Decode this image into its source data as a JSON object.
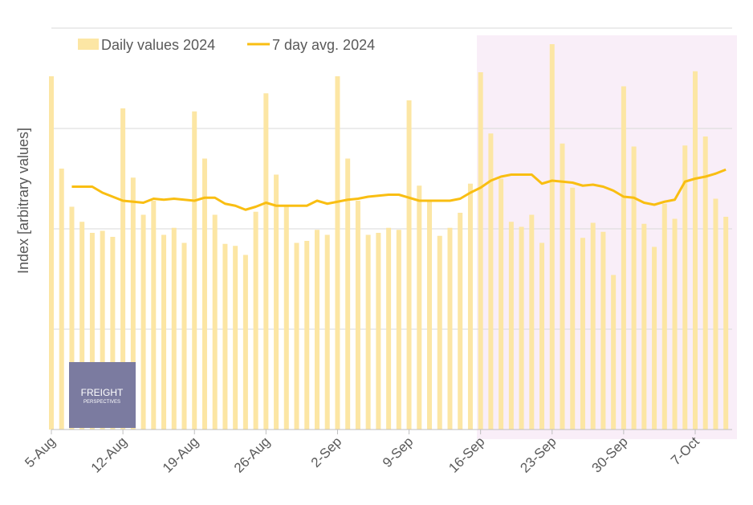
{
  "chart_data": {
    "type": "bar_line",
    "y_label": "Index [arbitrary values]",
    "categories": [
      "5-Aug",
      null,
      null,
      null,
      null,
      null,
      null,
      "12-Aug",
      null,
      null,
      null,
      null,
      null,
      null,
      "19-Aug",
      null,
      null,
      null,
      null,
      null,
      null,
      "26-Aug",
      null,
      null,
      null,
      null,
      null,
      null,
      "2-Sep",
      null,
      null,
      null,
      null,
      null,
      null,
      "9-Sep",
      null,
      null,
      null,
      null,
      null,
      null,
      "16-Sep",
      null,
      null,
      null,
      null,
      null,
      null,
      "23-Sep",
      null,
      null,
      null,
      null,
      null,
      null,
      "30-Sep",
      null,
      null,
      null,
      null,
      null,
      null,
      "7-Oct",
      null,
      null,
      null
    ],
    "series": [
      {
        "name": "Daily values 2024",
        "color": "#fce6a4",
        "kind": "bar",
        "values": [
          3.52,
          2.6,
          2.22,
          2.07,
          1.96,
          1.98,
          1.92,
          3.2,
          2.51,
          2.14,
          2.28,
          1.94,
          2.01,
          1.86,
          3.17,
          2.7,
          2.14,
          1.85,
          1.83,
          1.74,
          2.17,
          3.35,
          2.54,
          2.23,
          1.86,
          1.88,
          1.99,
          1.94,
          3.52,
          2.7,
          2.28,
          1.94,
          1.96,
          2.01,
          1.99,
          3.28,
          2.43,
          2.28,
          1.93,
          2.01,
          2.16,
          2.45,
          3.56,
          2.95,
          2.5,
          2.07,
          2.02,
          2.14,
          1.86,
          3.84,
          2.85,
          2.41,
          1.91,
          2.06,
          1.97,
          1.54,
          3.42,
          2.82,
          2.05,
          1.82,
          2.25,
          2.1,
          2.83,
          3.57,
          2.92,
          2.3,
          2.12
        ]
      },
      {
        "name": "7 day avg. 2024",
        "color": "#f9be12",
        "kind": "line",
        "values": [
          null,
          null,
          2.42,
          2.42,
          2.42,
          2.36,
          2.32,
          2.28,
          2.27,
          2.26,
          2.3,
          2.29,
          2.3,
          2.29,
          2.28,
          2.31,
          2.31,
          2.25,
          2.23,
          2.19,
          2.22,
          2.26,
          2.23,
          2.23,
          2.23,
          2.23,
          2.28,
          2.25,
          2.27,
          2.29,
          2.3,
          2.32,
          2.33,
          2.34,
          2.34,
          2.31,
          2.28,
          2.28,
          2.28,
          2.28,
          2.3,
          2.36,
          2.41,
          2.48,
          2.52,
          2.54,
          2.54,
          2.54,
          2.45,
          2.48,
          2.47,
          2.46,
          2.43,
          2.44,
          2.42,
          2.38,
          2.32,
          2.31,
          2.26,
          2.24,
          2.27,
          2.29,
          2.47,
          2.5,
          2.52,
          2.55,
          2.59
        ]
      }
    ],
    "ylim": [
      0,
      4
    ],
    "yticks": [
      0,
      1,
      2,
      3,
      4
    ],
    "grid": true,
    "legend": "top"
  },
  "logo": {
    "title": "FREIGHT",
    "subtitle": "PERSPECTIVES"
  }
}
